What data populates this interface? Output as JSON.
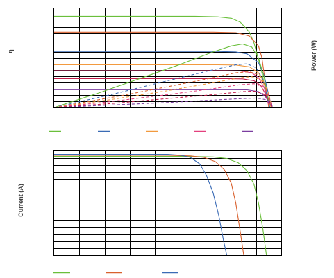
{
  "chart_data": [
    {
      "type": "line",
      "title": "",
      "ylabel": "η",
      "y2label": "Power (W)",
      "xlim": [
        0,
        1
      ],
      "ylim": [
        0,
        1
      ],
      "grid": true,
      "legend_placement": "bottom",
      "series": [
        {
          "color": "#6abf3b",
          "style": "solid",
          "x": [
            0,
            0.62,
            0.72,
            0.78,
            0.82,
            0.86,
            0.88,
            0.91,
            0.94,
            0.95
          ],
          "y": [
            0.92,
            0.92,
            0.915,
            0.9,
            0.86,
            0.76,
            0.65,
            0.4,
            0.08,
            0.0
          ]
        },
        {
          "color": "#d9612e",
          "style": "solid",
          "x": [
            0,
            0.7,
            0.8,
            0.86,
            0.9,
            0.915,
            0.93,
            0.945
          ],
          "y": [
            0.76,
            0.76,
            0.755,
            0.72,
            0.62,
            0.5,
            0.25,
            0.0
          ]
        },
        {
          "color": "#3a6bb5",
          "style": "solid",
          "x": [
            0,
            0.72,
            0.8,
            0.85,
            0.9,
            0.925,
            0.95,
            0.96
          ],
          "y": [
            0.565,
            0.565,
            0.56,
            0.54,
            0.45,
            0.32,
            0.08,
            0.0
          ]
        },
        {
          "color": "#f29a3f",
          "style": "solid",
          "x": [
            0,
            0.72,
            0.8,
            0.86,
            0.9,
            0.925,
            0.945,
            0.955
          ],
          "y": [
            0.43,
            0.43,
            0.428,
            0.41,
            0.35,
            0.25,
            0.07,
            0.0
          ]
        },
        {
          "color": "#e3407e",
          "style": "solid",
          "x": [
            0,
            0.75,
            0.82,
            0.87,
            0.9,
            0.925,
            0.94,
            0.95
          ],
          "y": [
            0.37,
            0.37,
            0.368,
            0.35,
            0.3,
            0.2,
            0.06,
            0.0
          ]
        },
        {
          "color": "#c41c4c",
          "style": "solid",
          "x": [
            0,
            0.76,
            0.83,
            0.88,
            0.91,
            0.93,
            0.95,
            0.96
          ],
          "y": [
            0.29,
            0.29,
            0.288,
            0.27,
            0.22,
            0.14,
            0.04,
            0.0
          ]
        },
        {
          "color": "#7b3ea0",
          "style": "solid",
          "x": [
            0,
            0.78,
            0.85,
            0.9,
            0.93,
            0.95,
            0.96
          ],
          "y": [
            0.18,
            0.18,
            0.178,
            0.16,
            0.11,
            0.04,
            0.0
          ]
        },
        {
          "color": "#6abf3b",
          "style": "solid",
          "x": [
            0,
            0.2,
            0.4,
            0.55,
            0.7,
            0.78,
            0.83,
            0.87,
            0.9,
            0.925,
            0.95
          ],
          "y": [
            0.0,
            0.15,
            0.31,
            0.43,
            0.56,
            0.62,
            0.64,
            0.61,
            0.5,
            0.3,
            0.0
          ]
        },
        {
          "color": "#3a6bb5",
          "style": "dashed",
          "x": [
            0,
            0.25,
            0.5,
            0.7,
            0.8,
            0.85,
            0.89,
            0.92,
            0.95
          ],
          "y": [
            0.0,
            0.13,
            0.27,
            0.38,
            0.43,
            0.44,
            0.4,
            0.28,
            0.0
          ]
        },
        {
          "color": "#d9612e",
          "style": "dashed",
          "x": [
            0,
            0.25,
            0.5,
            0.7,
            0.8,
            0.86,
            0.9,
            0.93,
            0.955
          ],
          "y": [
            0.0,
            0.1,
            0.21,
            0.3,
            0.35,
            0.36,
            0.33,
            0.22,
            0.0
          ]
        },
        {
          "color": "#f29a3f",
          "style": "dashed",
          "x": [
            0,
            0.25,
            0.5,
            0.7,
            0.82,
            0.87,
            0.91,
            0.94,
            0.96
          ],
          "y": [
            0.0,
            0.08,
            0.17,
            0.25,
            0.3,
            0.31,
            0.28,
            0.18,
            0.0
          ]
        },
        {
          "color": "#e3407e",
          "style": "dashed",
          "x": [
            0,
            0.25,
            0.5,
            0.7,
            0.82,
            0.88,
            0.92,
            0.945,
            0.96
          ],
          "y": [
            0.0,
            0.06,
            0.13,
            0.19,
            0.23,
            0.24,
            0.21,
            0.12,
            0.0
          ]
        },
        {
          "color": "#c41c4c",
          "style": "dashed",
          "x": [
            0,
            0.25,
            0.5,
            0.7,
            0.83,
            0.88,
            0.92,
            0.945,
            0.96
          ],
          "y": [
            0.0,
            0.04,
            0.09,
            0.13,
            0.16,
            0.165,
            0.14,
            0.08,
            0.0
          ]
        },
        {
          "color": "#7b3ea0",
          "style": "dashed",
          "x": [
            0,
            0.25,
            0.5,
            0.7,
            0.83,
            0.89,
            0.93,
            0.95,
            0.965
          ],
          "y": [
            0.0,
            0.025,
            0.05,
            0.075,
            0.09,
            0.095,
            0.08,
            0.045,
            0.0
          ]
        }
      ],
      "legend": [
        {
          "name": "",
          "color": "#6abf3b"
        },
        {
          "name": "",
          "color": "#3a6bb5"
        },
        {
          "name": "",
          "color": "#f29a3f"
        },
        {
          "name": "",
          "color": "#e3407e"
        },
        {
          "name": "",
          "color": "#7b3ea0"
        }
      ]
    },
    {
      "type": "line",
      "title": "",
      "ylabel": "Current (A)",
      "xlim": [
        0,
        1
      ],
      "ylim": [
        0,
        1
      ],
      "grid": true,
      "legend_placement": "bottom",
      "series": [
        {
          "color": "#6abf3b",
          "style": "solid",
          "x": [
            0,
            0.6,
            0.7,
            0.76,
            0.81,
            0.85,
            0.88,
            0.9,
            0.92,
            0.935
          ],
          "y": [
            0.95,
            0.95,
            0.945,
            0.93,
            0.89,
            0.81,
            0.68,
            0.5,
            0.24,
            0.0
          ]
        },
        {
          "color": "#d9612e",
          "style": "solid",
          "x": [
            0,
            0.5,
            0.6,
            0.66,
            0.71,
            0.75,
            0.78,
            0.8,
            0.82,
            0.835
          ],
          "y": [
            0.96,
            0.96,
            0.955,
            0.94,
            0.9,
            0.82,
            0.69,
            0.5,
            0.22,
            0.0
          ]
        },
        {
          "color": "#3a6bb5",
          "style": "solid",
          "x": [
            0,
            0.5,
            0.56,
            0.6,
            0.64,
            0.67,
            0.7,
            0.725,
            0.745,
            0.76
          ],
          "y": [
            0.97,
            0.97,
            0.96,
            0.94,
            0.88,
            0.77,
            0.6,
            0.38,
            0.15,
            0.0
          ]
        }
      ],
      "legend": [
        {
          "name": "",
          "color": "#6abf3b"
        },
        {
          "name": "",
          "color": "#d9612e"
        },
        {
          "name": "",
          "color": "#3a6bb5"
        }
      ]
    }
  ]
}
